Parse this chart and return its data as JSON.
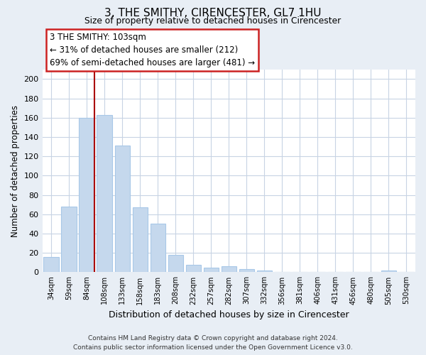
{
  "title": "3, THE SMITHY, CIRENCESTER, GL7 1HU",
  "subtitle": "Size of property relative to detached houses in Cirencester",
  "xlabel": "Distribution of detached houses by size in Cirencester",
  "ylabel": "Number of detached properties",
  "bar_labels": [
    "34sqm",
    "59sqm",
    "84sqm",
    "108sqm",
    "133sqm",
    "158sqm",
    "183sqm",
    "208sqm",
    "232sqm",
    "257sqm",
    "282sqm",
    "307sqm",
    "332sqm",
    "356sqm",
    "381sqm",
    "406sqm",
    "431sqm",
    "456sqm",
    "480sqm",
    "505sqm",
    "530sqm"
  ],
  "bar_values": [
    16,
    68,
    160,
    163,
    131,
    67,
    50,
    18,
    8,
    5,
    6,
    3,
    2,
    0,
    0,
    0,
    0,
    0,
    0,
    2,
    0
  ],
  "bar_color": "#c5d8ed",
  "bar_edge_color": "#a8c8e8",
  "vline_color": "#aa0000",
  "ylim": [
    0,
    210
  ],
  "yticks": [
    0,
    20,
    40,
    60,
    80,
    100,
    120,
    140,
    160,
    180,
    200
  ],
  "annotation_line1": "3 THE SMITHY: 103sqm",
  "annotation_line2": "← 31% of detached houses are smaller (212)",
  "annotation_line3": "69% of semi-detached houses are larger (481) →",
  "footer_line1": "Contains HM Land Registry data © Crown copyright and database right 2024.",
  "footer_line2": "Contains public sector information licensed under the Open Government Licence v3.0.",
  "bg_color": "#e8eef5",
  "plot_bg_color": "#ffffff",
  "grid_color": "#c8d4e4"
}
